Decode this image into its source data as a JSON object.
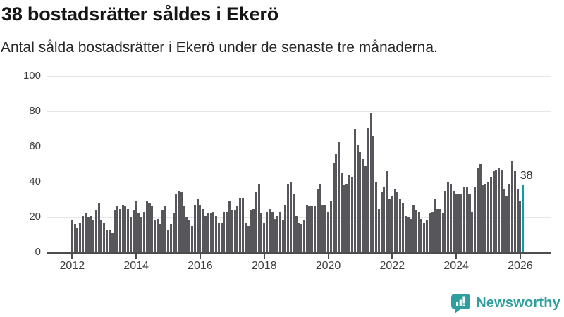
{
  "header": {
    "title": "38 bostadsrätter såldes i Ekerö",
    "subtitle": "Antal sålda bostadsrätter i Ekerö under de senaste tre månaderna."
  },
  "chart_data": {
    "type": "bar",
    "title": "38 bostadsrätter såldes i Ekerö",
    "frequency": "monthly",
    "x_start": "2012-01",
    "x_end": "2026-02",
    "values": [
      18,
      16,
      14,
      17,
      21,
      22,
      20,
      21,
      18,
      24,
      28,
      18,
      17,
      13,
      13,
      11,
      24,
      26,
      25,
      27,
      26,
      25,
      20,
      24,
      29,
      22,
      20,
      23,
      29,
      28,
      26,
      18,
      19,
      16,
      24,
      26,
      13,
      16,
      22,
      33,
      35,
      34,
      26,
      20,
      18,
      15,
      27,
      30,
      27,
      25,
      21,
      22,
      22,
      23,
      21,
      17,
      17,
      23,
      23,
      29,
      24,
      24,
      26,
      31,
      31,
      17,
      15,
      24,
      25,
      34,
      39,
      22,
      17,
      23,
      25,
      23,
      19,
      21,
      23,
      18,
      27,
      39,
      40,
      33,
      21,
      17,
      16,
      18,
      27,
      26,
      26,
      26,
      36,
      39,
      27,
      27,
      23,
      29,
      51,
      56,
      63,
      45,
      38,
      39,
      44,
      43,
      70,
      61,
      57,
      53,
      49,
      71,
      79,
      66,
      40,
      25,
      34,
      37,
      46,
      30,
      32,
      36,
      34,
      30,
      28,
      21,
      20,
      19,
      27,
      24,
      23,
      19,
      17,
      18,
      22,
      23,
      30,
      25,
      25,
      22,
      35,
      40,
      39,
      35,
      33,
      33,
      33,
      37,
      37,
      33,
      23,
      37,
      48,
      50,
      38,
      39,
      40,
      43,
      46,
      47,
      48,
      47,
      36,
      32,
      39,
      52,
      46,
      36,
      29,
      38
    ],
    "highlight": {
      "index": 169,
      "value": 38,
      "label": "38"
    },
    "ylim": [
      0,
      100
    ],
    "y_ticks": [
      0,
      20,
      40,
      60,
      80,
      100
    ],
    "x_tick_years": [
      2012,
      2014,
      2016,
      2018,
      2020,
      2022,
      2024,
      2026
    ],
    "grid": true,
    "legend": "none",
    "colors": {
      "bar": "#57575b",
      "highlight": "#0aa0a0",
      "grid": "#e6e6e6",
      "axis": "#4d4d4d"
    }
  },
  "footer": {
    "brand": "Newsworthy",
    "icon": "newsworthy-speech-bubble-bar-chart-icon",
    "brand_color": "#2f9e9e"
  }
}
